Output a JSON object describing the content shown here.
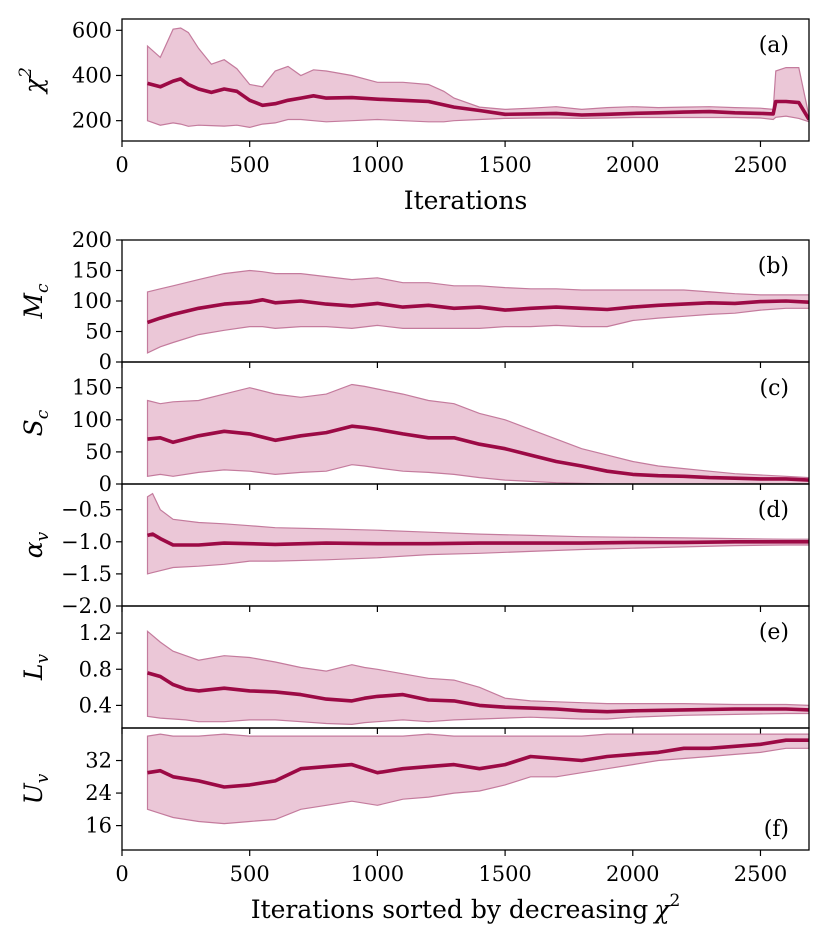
{
  "chart_data": [
    {
      "type": "area",
      "panel_label": "(a)",
      "ylabel": "χ",
      "ylabel_sup": "2",
      "xlabel": "Iterations",
      "xlim": [
        0,
        2690
      ],
      "ylim": [
        110,
        650
      ],
      "xticks": [
        0,
        500,
        1000,
        1500,
        2000,
        2500
      ],
      "yticks": [
        200,
        400,
        600
      ],
      "x": [
        100,
        150,
        200,
        230,
        260,
        300,
        350,
        400,
        450,
        500,
        550,
        600,
        650,
        700,
        750,
        800,
        900,
        1000,
        1100,
        1200,
        1260,
        1300,
        1400,
        1500,
        1600,
        1700,
        1800,
        1900,
        2000,
        2100,
        2200,
        2300,
        2400,
        2500,
        2550,
        2560,
        2600,
        2650,
        2690
      ],
      "series": [
        {
          "role": "median",
          "values": [
            365,
            350,
            375,
            385,
            360,
            340,
            325,
            340,
            330,
            290,
            268,
            275,
            290,
            300,
            310,
            300,
            302,
            295,
            290,
            285,
            270,
            260,
            245,
            228,
            230,
            232,
            225,
            228,
            232,
            235,
            238,
            240,
            235,
            232,
            230,
            285,
            285,
            280,
            205
          ]
        },
        {
          "role": "upper",
          "values": [
            530,
            480,
            605,
            610,
            590,
            520,
            450,
            470,
            430,
            360,
            350,
            420,
            440,
            400,
            425,
            420,
            400,
            370,
            370,
            360,
            330,
            300,
            260,
            250,
            255,
            262,
            250,
            258,
            262,
            258,
            260,
            262,
            258,
            255,
            250,
            420,
            435,
            435,
            220
          ]
        },
        {
          "role": "lower",
          "values": [
            200,
            180,
            190,
            185,
            175,
            180,
            178,
            176,
            180,
            170,
            185,
            190,
            205,
            205,
            200,
            195,
            200,
            205,
            200,
            195,
            195,
            200,
            205,
            210,
            212,
            212,
            210,
            212,
            214,
            214,
            214,
            214,
            214,
            212,
            205,
            215,
            220,
            210,
            195
          ]
        }
      ]
    },
    {
      "type": "area",
      "panel_label": "(b)",
      "ylabel": "M",
      "ylabel_sub": "c",
      "xlim": [
        0,
        2690
      ],
      "ylim": [
        0,
        200
      ],
      "yticks": [
        0,
        50,
        100,
        150,
        200
      ],
      "x": [
        100,
        150,
        200,
        300,
        400,
        500,
        550,
        600,
        700,
        800,
        900,
        1000,
        1100,
        1200,
        1300,
        1400,
        1500,
        1600,
        1700,
        1800,
        1900,
        2000,
        2100,
        2200,
        2300,
        2400,
        2500,
        2600,
        2690
      ],
      "series": [
        {
          "role": "median",
          "values": [
            65,
            72,
            78,
            88,
            95,
            98,
            102,
            97,
            100,
            95,
            92,
            96,
            90,
            93,
            88,
            90,
            85,
            88,
            90,
            88,
            86,
            90,
            93,
            95,
            97,
            96,
            99,
            100,
            98
          ]
        },
        {
          "role": "upper",
          "values": [
            115,
            120,
            125,
            135,
            145,
            150,
            148,
            145,
            145,
            140,
            135,
            138,
            130,
            130,
            125,
            125,
            122,
            120,
            120,
            118,
            118,
            118,
            118,
            118,
            115,
            112,
            110,
            110,
            110
          ]
        },
        {
          "role": "lower",
          "values": [
            15,
            25,
            32,
            45,
            52,
            58,
            58,
            55,
            58,
            58,
            55,
            60,
            55,
            55,
            55,
            55,
            58,
            58,
            60,
            58,
            58,
            68,
            72,
            75,
            78,
            80,
            85,
            88,
            88
          ]
        }
      ]
    },
    {
      "type": "area",
      "panel_label": "(c)",
      "ylabel": "S",
      "ylabel_sub": "c",
      "xlim": [
        0,
        2690
      ],
      "ylim": [
        0,
        190
      ],
      "yticks": [
        0,
        50,
        100,
        150
      ],
      "x": [
        100,
        150,
        200,
        300,
        400,
        500,
        600,
        700,
        800,
        900,
        950,
        1000,
        1100,
        1200,
        1300,
        1400,
        1500,
        1600,
        1700,
        1800,
        1900,
        2000,
        2100,
        2200,
        2300,
        2400,
        2500,
        2600,
        2690
      ],
      "series": [
        {
          "role": "median",
          "values": [
            70,
            72,
            65,
            75,
            82,
            78,
            68,
            75,
            80,
            90,
            88,
            85,
            78,
            72,
            72,
            62,
            55,
            45,
            35,
            28,
            20,
            15,
            13,
            12,
            10,
            9,
            8,
            8,
            6
          ]
        },
        {
          "role": "upper",
          "values": [
            130,
            125,
            128,
            130,
            140,
            150,
            140,
            135,
            140,
            155,
            152,
            148,
            140,
            130,
            125,
            110,
            100,
            85,
            70,
            55,
            45,
            35,
            28,
            24,
            20,
            16,
            14,
            12,
            10
          ]
        },
        {
          "role": "lower",
          "values": [
            12,
            15,
            12,
            18,
            22,
            20,
            15,
            18,
            20,
            30,
            28,
            25,
            20,
            18,
            15,
            10,
            6,
            4,
            2,
            1,
            0,
            0,
            0,
            0,
            0,
            0,
            0,
            0,
            0
          ]
        }
      ]
    },
    {
      "type": "area",
      "panel_label": "(d)",
      "ylabel": "α",
      "ylabel_sub": "v",
      "xlim": [
        0,
        2690
      ],
      "ylim": [
        -2.0,
        -0.1
      ],
      "yticks": [
        -2.0,
        -1.5,
        -1.0,
        -0.5
      ],
      "ytick_labels": [
        "−2.0",
        "−1.5",
        "−1.0",
        "−0.5"
      ],
      "x": [
        100,
        120,
        150,
        200,
        300,
        400,
        500,
        600,
        800,
        1000,
        1200,
        1400,
        1600,
        1800,
        2000,
        2200,
        2400,
        2600,
        2690
      ],
      "series": [
        {
          "role": "median",
          "values": [
            -0.9,
            -0.88,
            -0.95,
            -1.05,
            -1.05,
            -1.02,
            -1.03,
            -1.04,
            -1.02,
            -1.03,
            -1.03,
            -1.02,
            -1.02,
            -1.02,
            -1.01,
            -1.01,
            -1.0,
            -1.0,
            -1.0
          ]
        },
        {
          "role": "upper",
          "values": [
            -0.3,
            -0.25,
            -0.5,
            -0.65,
            -0.7,
            -0.72,
            -0.75,
            -0.78,
            -0.8,
            -0.82,
            -0.85,
            -0.88,
            -0.9,
            -0.92,
            -0.93,
            -0.94,
            -0.95,
            -0.96,
            -0.96
          ]
        },
        {
          "role": "lower",
          "values": [
            -1.5,
            -1.48,
            -1.45,
            -1.4,
            -1.38,
            -1.35,
            -1.3,
            -1.3,
            -1.28,
            -1.25,
            -1.2,
            -1.18,
            -1.15,
            -1.12,
            -1.1,
            -1.08,
            -1.06,
            -1.05,
            -1.05
          ]
        }
      ]
    },
    {
      "type": "area",
      "panel_label": "(e)",
      "ylabel": "L",
      "ylabel_sub": "v",
      "xlim": [
        0,
        2690
      ],
      "ylim": [
        0.15,
        1.5
      ],
      "yticks": [
        0.4,
        0.8,
        1.2
      ],
      "ytick_labels": [
        "0.4",
        "0.8",
        "1.2"
      ],
      "x": [
        100,
        150,
        200,
        250,
        300,
        400,
        500,
        600,
        700,
        800,
        900,
        950,
        1000,
        1100,
        1200,
        1300,
        1400,
        1500,
        1600,
        1700,
        1800,
        1900,
        2000,
        2200,
        2400,
        2600,
        2690
      ],
      "series": [
        {
          "role": "median",
          "values": [
            0.76,
            0.72,
            0.63,
            0.58,
            0.56,
            0.59,
            0.56,
            0.55,
            0.52,
            0.47,
            0.45,
            0.48,
            0.5,
            0.52,
            0.46,
            0.45,
            0.4,
            0.38,
            0.37,
            0.36,
            0.34,
            0.33,
            0.34,
            0.35,
            0.36,
            0.36,
            0.35
          ]
        },
        {
          "role": "upper",
          "values": [
            1.22,
            1.1,
            1.0,
            0.95,
            0.9,
            0.95,
            0.93,
            0.88,
            0.82,
            0.78,
            0.85,
            0.82,
            0.8,
            0.75,
            0.7,
            0.68,
            0.6,
            0.48,
            0.45,
            0.44,
            0.43,
            0.42,
            0.42,
            0.42,
            0.41,
            0.41,
            0.4
          ]
        },
        {
          "role": "lower",
          "values": [
            0.28,
            0.26,
            0.25,
            0.24,
            0.22,
            0.22,
            0.24,
            0.24,
            0.22,
            0.2,
            0.19,
            0.21,
            0.22,
            0.24,
            0.22,
            0.24,
            0.25,
            0.26,
            0.27,
            0.26,
            0.25,
            0.25,
            0.27,
            0.29,
            0.3,
            0.31,
            0.31
          ]
        }
      ]
    },
    {
      "type": "area",
      "panel_label": "(f)",
      "ylabel": "U",
      "ylabel_sub": "v",
      "xlabel": "Iterations sorted by decreasing",
      "xlabel_symbol": "χ",
      "xlabel_sup": "2",
      "xlim": [
        0,
        2690
      ],
      "ylim": [
        10,
        40
      ],
      "yticks": [
        16,
        24,
        32
      ],
      "xticks": [
        0,
        500,
        1000,
        1500,
        2000,
        2500
      ],
      "x": [
        100,
        150,
        200,
        300,
        400,
        500,
        600,
        700,
        800,
        900,
        1000,
        1100,
        1200,
        1300,
        1400,
        1500,
        1600,
        1700,
        1800,
        1900,
        2000,
        2100,
        2200,
        2300,
        2400,
        2500,
        2600,
        2690
      ],
      "series": [
        {
          "role": "median",
          "values": [
            29,
            29.5,
            28,
            27,
            25.5,
            26,
            27,
            30,
            30.5,
            31,
            29,
            30,
            30.5,
            31,
            30,
            31,
            33,
            32.5,
            32,
            33,
            33.5,
            34,
            35,
            35,
            35.5,
            36,
            37,
            37
          ]
        },
        {
          "role": "upper",
          "values": [
            38,
            38.5,
            38,
            38,
            38.5,
            38,
            38,
            38,
            38,
            38,
            38,
            38,
            38.5,
            38,
            38,
            38,
            38,
            38,
            38,
            38.5,
            38.5,
            38.5,
            38.5,
            38.5,
            38.5,
            38.5,
            38.5,
            38.5
          ]
        },
        {
          "role": "lower",
          "values": [
            20,
            19,
            18,
            17,
            16.5,
            17,
            17.5,
            20,
            21,
            22,
            21,
            22.5,
            23,
            24,
            24.5,
            26,
            28,
            28,
            29,
            30,
            31,
            32,
            32.5,
            33,
            33.5,
            34,
            35,
            35
          ]
        }
      ]
    }
  ]
}
